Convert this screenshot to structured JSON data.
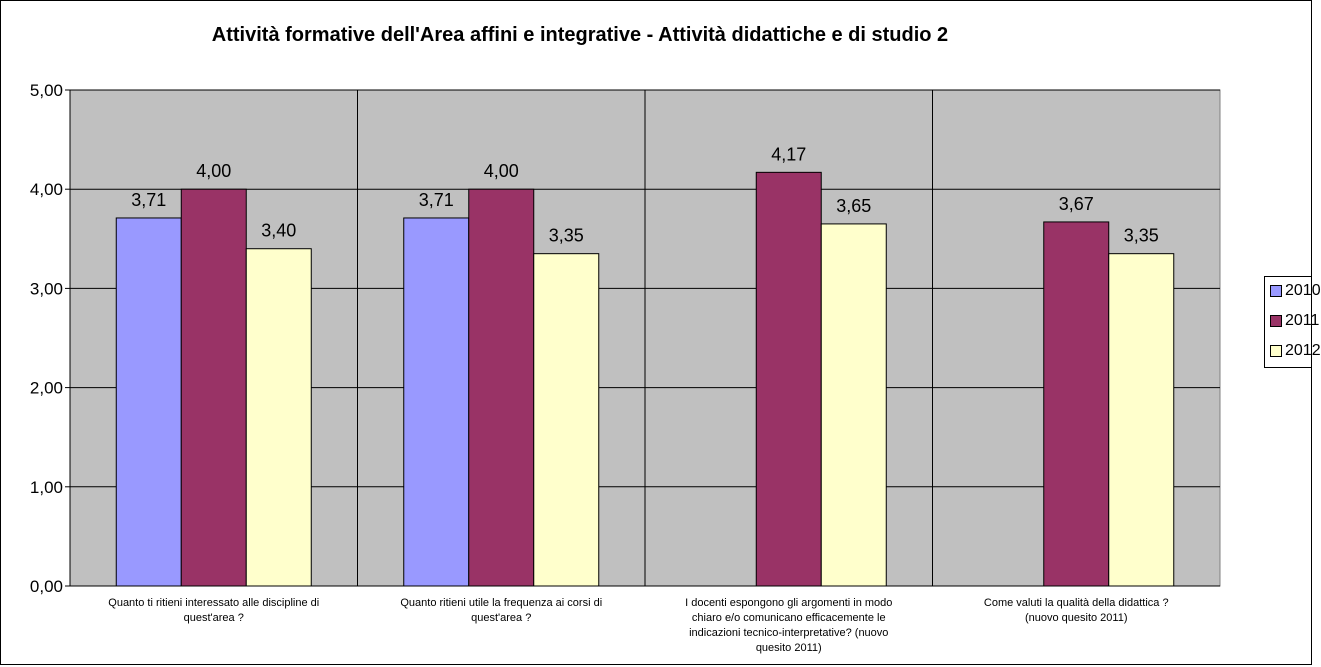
{
  "chart_data": {
    "type": "bar",
    "title": "Attività formative dell'Area affini e integrative - Attività didattiche e di studio 2",
    "categories": [
      "Quanto ti ritieni interessato alle discipline di quest'area ?",
      "Quanto ritieni utile la frequenza ai corsi di quest'area ?",
      "I docenti espongono gli argomenti in modo chiaro e/o comunicano efficacemente le indicazioni tecnico-interpretative? (nuovo quesito 2011)",
      "Come valuti la qualità della didattica ? (nuovo quesito 2011)"
    ],
    "category_lines": [
      [
        "Quanto ti ritieni interessato alle discipline di",
        "quest'area ?"
      ],
      [
        "Quanto ritieni utile la frequenza ai corsi di",
        "quest'area ?"
      ],
      [
        "I docenti espongono gli argomenti in modo",
        "chiaro e/o comunicano efficacemente le",
        "indicazioni tecnico-interpretative? (nuovo",
        "quesito 2011)"
      ],
      [
        "Come valuti la qualità della didattica ?",
        "(nuovo quesito 2011)"
      ]
    ],
    "series": [
      {
        "name": "2010",
        "color": "#9999ff",
        "values": [
          3.71,
          3.71,
          null,
          null
        ],
        "labels": [
          "3,71",
          "3,71",
          "",
          ""
        ]
      },
      {
        "name": "2011",
        "color": "#993366",
        "values": [
          4.0,
          4.0,
          4.17,
          3.67
        ],
        "labels": [
          "4,00",
          "4,00",
          "4,17",
          "3,67"
        ]
      },
      {
        "name": "2012",
        "color": "#ffffcc",
        "values": [
          3.4,
          3.35,
          3.65,
          3.35
        ],
        "labels": [
          "3,40",
          "3,35",
          "3,65",
          "3,35"
        ]
      }
    ],
    "ylim": [
      0,
      5
    ],
    "yticks": [
      0,
      1,
      2,
      3,
      4,
      5
    ],
    "ytick_labels": [
      "0,00",
      "1,00",
      "2,00",
      "3,00",
      "4,00",
      "5,00"
    ],
    "grid": true,
    "legend_position": "right",
    "plot_background": "#c0c0c0"
  }
}
